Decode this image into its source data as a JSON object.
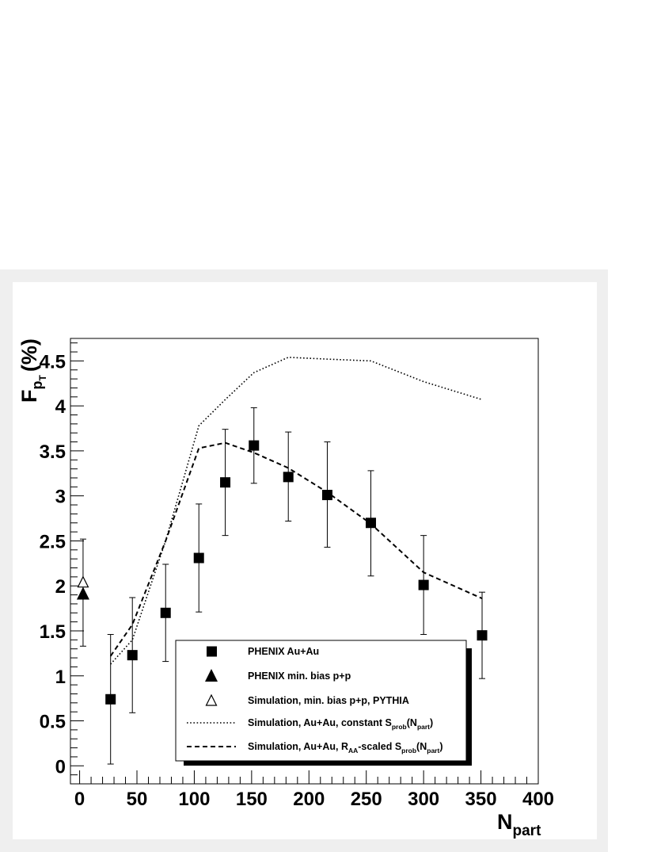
{
  "chart_data": {
    "type": "scatter",
    "title": "",
    "xlabel": {
      "main": "N",
      "sub": "part"
    },
    "ylabel": {
      "main": "F",
      "sub": "p",
      "subsub": "T",
      "unit": "(%)"
    },
    "xlim": [
      -8,
      400
    ],
    "ylim": [
      -0.2,
      4.75
    ],
    "x_ticks": [
      "0",
      "50",
      "100",
      "150",
      "200",
      "250",
      "300",
      "350",
      "400"
    ],
    "x_tick_values": [
      0,
      50,
      100,
      150,
      200,
      250,
      300,
      350,
      400
    ],
    "y_ticks": [
      "0",
      "0.5",
      "1",
      "1.5",
      "2",
      "2.5",
      "3",
      "3.5",
      "4",
      "4.5"
    ],
    "y_tick_values": [
      0,
      0.5,
      1,
      1.5,
      2,
      2.5,
      3,
      3.5,
      4,
      4.5
    ],
    "grid": false,
    "legend_position": "bottom-center",
    "series": [
      {
        "name": "PHENIX Au+Au",
        "kind": "square-markers-with-error-bars",
        "points": [
          {
            "x": 27,
            "y": 0.74,
            "ylow": 0.02,
            "yhigh": 1.46
          },
          {
            "x": 46,
            "y": 1.23,
            "ylow": 0.59,
            "yhigh": 1.87
          },
          {
            "x": 75,
            "y": 1.7,
            "ylow": 1.16,
            "yhigh": 2.24
          },
          {
            "x": 104,
            "y": 2.31,
            "ylow": 1.71,
            "yhigh": 2.91
          },
          {
            "x": 127,
            "y": 3.15,
            "ylow": 2.56,
            "yhigh": 3.74
          },
          {
            "x": 152,
            "y": 3.56,
            "ylow": 3.14,
            "yhigh": 3.98
          },
          {
            "x": 182,
            "y": 3.21,
            "ylow": 2.72,
            "yhigh": 3.71
          },
          {
            "x": 216,
            "y": 3.01,
            "ylow": 2.43,
            "yhigh": 3.6
          },
          {
            "x": 254,
            "y": 2.7,
            "ylow": 2.11,
            "yhigh": 3.28
          },
          {
            "x": 300,
            "y": 2.01,
            "ylow": 1.46,
            "yhigh": 2.56
          },
          {
            "x": 351,
            "y": 1.45,
            "ylow": 0.97,
            "yhigh": 1.93
          }
        ]
      },
      {
        "name": "PHENIX min. bias p+p",
        "kind": "filled-triangle",
        "points": [
          {
            "x": 3,
            "y": 1.91,
            "ylow": 1.33,
            "yhigh": 2.52
          }
        ]
      },
      {
        "name": "Simulation, min. bias p+p, PYTHIA",
        "kind": "open-triangle",
        "points": [
          {
            "x": 3,
            "y": 2.04
          }
        ]
      },
      {
        "name": "Simulation, Au+Au, constant S_prob(N_part)",
        "kind": "dotted-line",
        "x": [
          27,
          46,
          75,
          104,
          127,
          152,
          182,
          216,
          254,
          300,
          351
        ],
        "y": [
          1.13,
          1.4,
          2.5,
          3.78,
          4.07,
          4.37,
          4.54,
          4.52,
          4.5,
          4.27,
          4.07
        ]
      },
      {
        "name": "Simulation, Au+Au, R_AA-scaled S_prob(N_part)",
        "kind": "dashed-line",
        "x": [
          27,
          46,
          75,
          104,
          127,
          152,
          182,
          216,
          254,
          300,
          351
        ],
        "y": [
          1.22,
          1.57,
          2.5,
          3.53,
          3.59,
          3.48,
          3.31,
          3.04,
          2.69,
          2.15,
          1.86
        ]
      }
    ],
    "legend": [
      {
        "marker": "square",
        "parts": [
          {
            "t": "PHENIX Au+Au"
          }
        ]
      },
      {
        "marker": "filled-triangle",
        "parts": [
          {
            "t": "PHENIX min. bias p+p"
          }
        ]
      },
      {
        "marker": "open-triangle",
        "parts": [
          {
            "t": "Simulation, min. bias p+p, PYTHIA"
          }
        ]
      },
      {
        "marker": "dotted",
        "parts": [
          {
            "t": "Simulation, Au+Au, constant S"
          },
          {
            "t": "prob",
            "sub": true
          },
          {
            "t": "(N"
          },
          {
            "t": "part",
            "sub": true
          },
          {
            "t": ")"
          }
        ]
      },
      {
        "marker": "dashed",
        "parts": [
          {
            "t": "Simulation, Au+Au, R"
          },
          {
            "t": "AA",
            "sub": true
          },
          {
            "t": "-scaled S"
          },
          {
            "t": "prob",
            "sub": true
          },
          {
            "t": "(N"
          },
          {
            "t": "part",
            "sub": true
          },
          {
            "t": ")"
          }
        ]
      }
    ],
    "colors": {
      "frame": "#efefef",
      "pad": "#ffffff",
      "ink": "#000000"
    }
  }
}
